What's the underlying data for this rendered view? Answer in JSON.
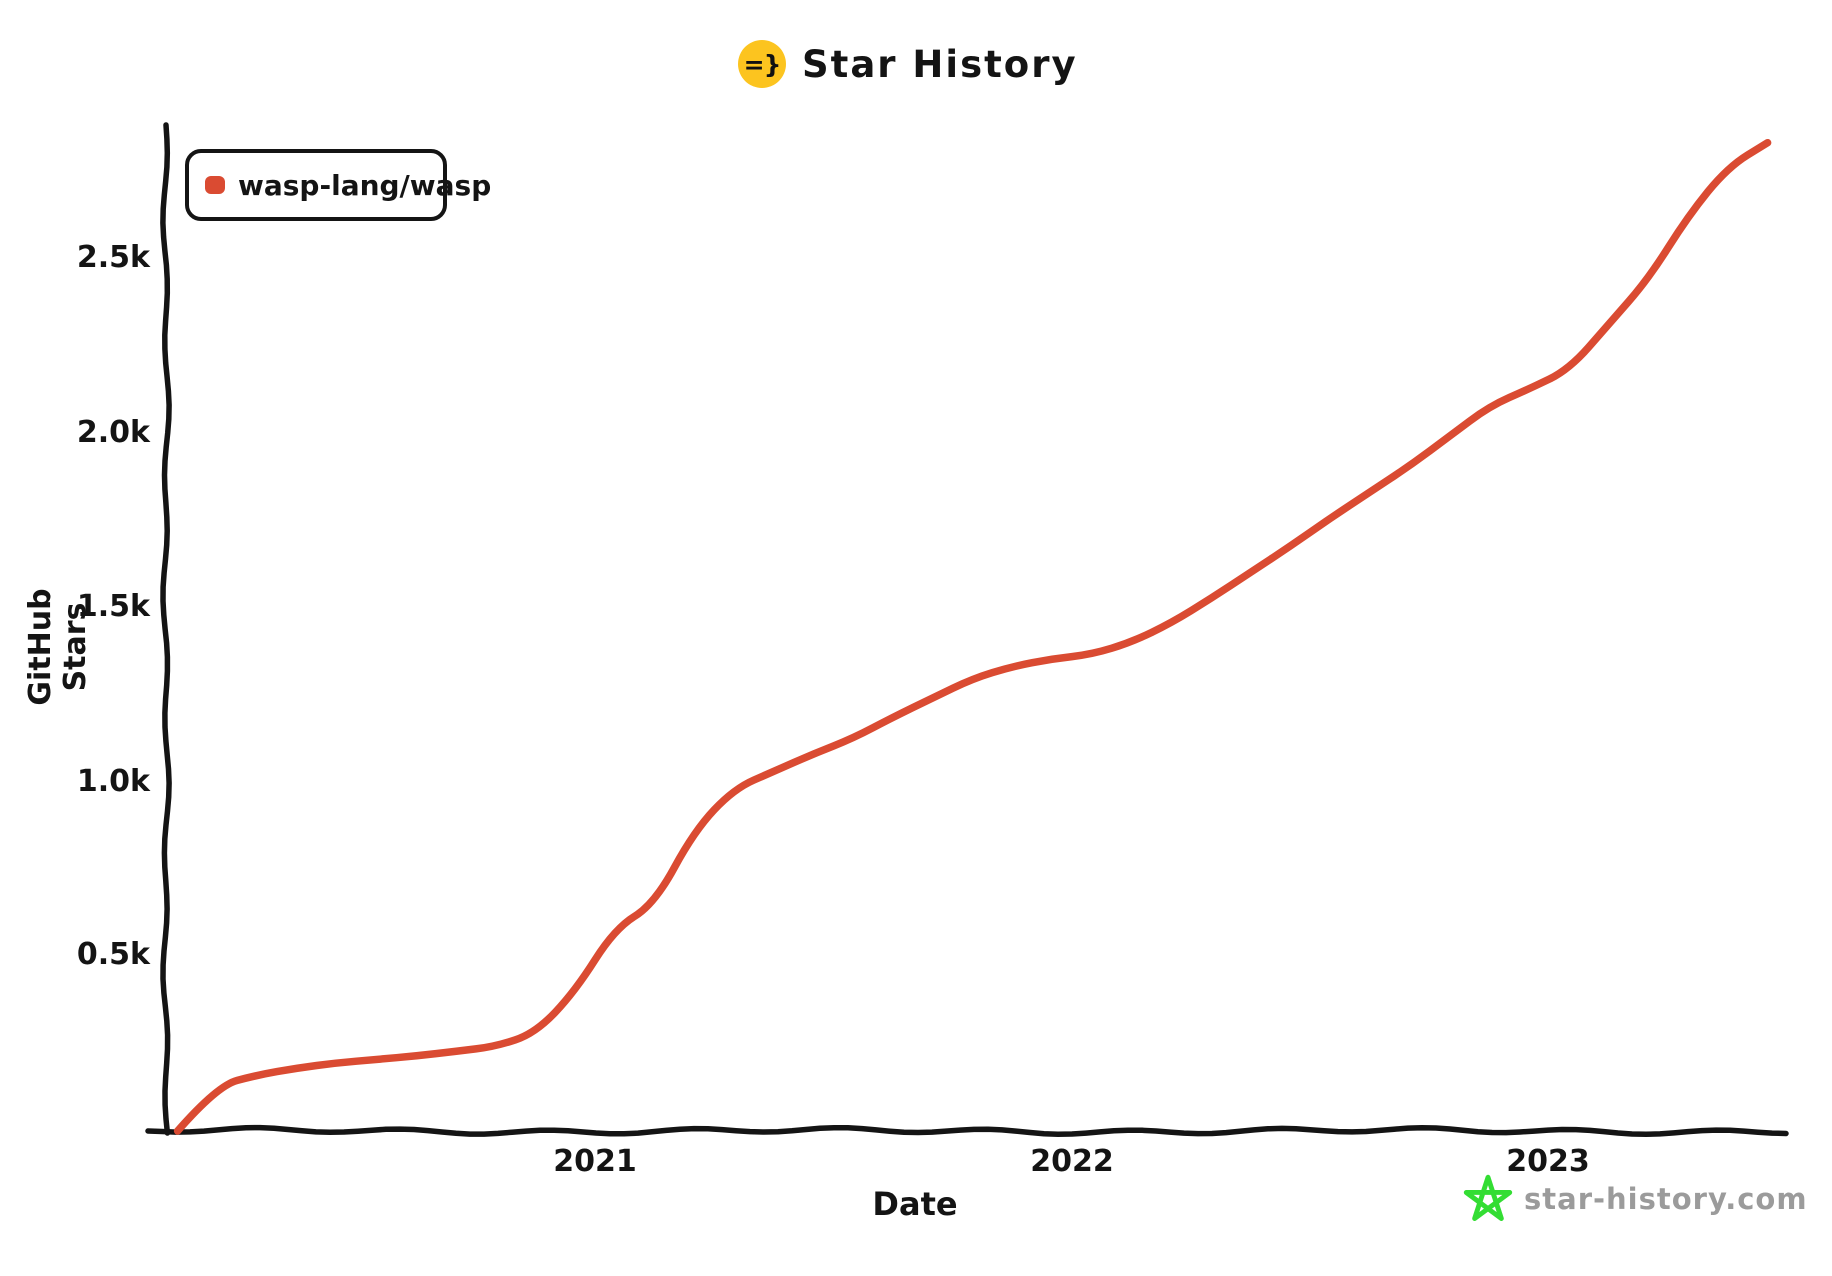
{
  "title": {
    "text": "Star History",
    "icon_glyph": "=}",
    "icon_bg": "#FCC41F"
  },
  "legend": {
    "label": "wasp-lang/wasp"
  },
  "axes": {
    "y_label": "GitHub Stars",
    "x_label": "Date",
    "y_ticks": [
      "2.5k",
      "2.0k",
      "1.5k",
      "1.0k",
      "0.5k"
    ],
    "x_ticks": [
      "2021",
      "2022",
      "2023"
    ]
  },
  "watermark": {
    "text": "star-history.com"
  },
  "colors": {
    "series": "#DA4B32",
    "axis": "#141414",
    "watermark_star": "#33DD33",
    "watermark_text": "#9B9B9B"
  },
  "chart_data": {
    "type": "line",
    "title": "Star History",
    "xlabel": "Date",
    "ylabel": "GitHub Stars",
    "x_tick_labels": [
      "2021",
      "2022",
      "2023"
    ],
    "y_tick_values": [
      500,
      1000,
      1500,
      2000,
      2500
    ],
    "y_tick_labels": [
      "0.5k",
      "1.0k",
      "1.5k",
      "2.0k",
      "2.5k"
    ],
    "ylim": [
      0,
      2900
    ],
    "x_range": [
      "2020-02",
      "2023-06"
    ],
    "grid": false,
    "legend_position": "top-left",
    "series": [
      {
        "name": "wasp-lang/wasp",
        "color": "#DA4B32",
        "points": [
          [
            "2020-02",
            0
          ],
          [
            "2020-03",
            130
          ],
          [
            "2020-04",
            160
          ],
          [
            "2020-05",
            180
          ],
          [
            "2020-06",
            195
          ],
          [
            "2020-07",
            205
          ],
          [
            "2020-08",
            215
          ],
          [
            "2020-09",
            228
          ],
          [
            "2020-10",
            242
          ],
          [
            "2020-11",
            280
          ],
          [
            "2020-12",
            400
          ],
          [
            "2021-01",
            580
          ],
          [
            "2021-02",
            650
          ],
          [
            "2021-03",
            860
          ],
          [
            "2021-04",
            980
          ],
          [
            "2021-05",
            1030
          ],
          [
            "2021-06",
            1080
          ],
          [
            "2021-07",
            1125
          ],
          [
            "2021-08",
            1185
          ],
          [
            "2021-09",
            1240
          ],
          [
            "2021-10",
            1295
          ],
          [
            "2021-11",
            1330
          ],
          [
            "2021-12",
            1352
          ],
          [
            "2022-01",
            1365
          ],
          [
            "2022-02",
            1400
          ],
          [
            "2022-03",
            1455
          ],
          [
            "2022-04",
            1525
          ],
          [
            "2022-05",
            1600
          ],
          [
            "2022-06",
            1675
          ],
          [
            "2022-07",
            1755
          ],
          [
            "2022-08",
            1830
          ],
          [
            "2022-09",
            1905
          ],
          [
            "2022-10",
            1990
          ],
          [
            "2022-11",
            2075
          ],
          [
            "2022-12",
            2125
          ],
          [
            "2023-01",
            2180
          ],
          [
            "2023-02",
            2310
          ],
          [
            "2023-03",
            2440
          ],
          [
            "2023-04",
            2620
          ],
          [
            "2023-05",
            2760
          ],
          [
            "2023-06",
            2830
          ]
        ]
      }
    ]
  }
}
